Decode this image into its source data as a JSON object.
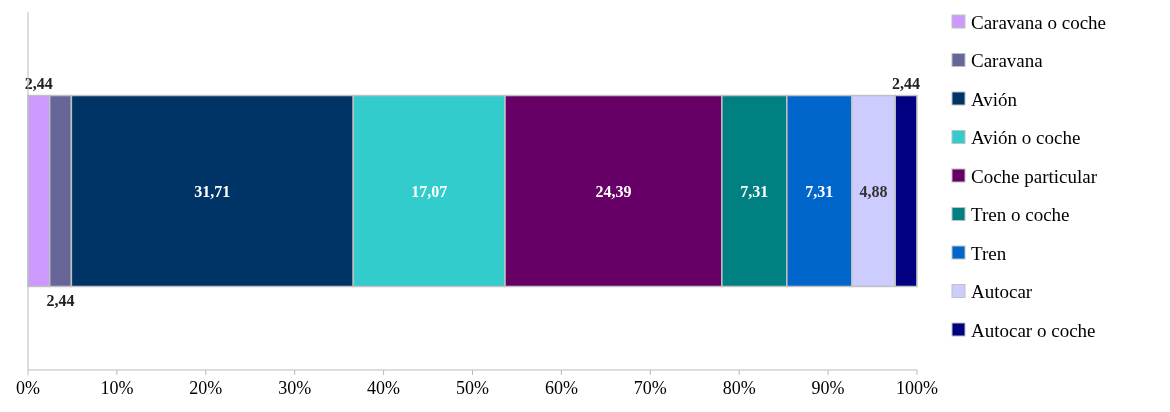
{
  "chart_data": {
    "type": "bar",
    "orientation": "horizontal",
    "stacked": true,
    "categories": [
      null
    ],
    "xlim": [
      0,
      100
    ],
    "xticks": [
      {
        "value": 0,
        "label": "0%"
      },
      {
        "value": 10,
        "label": "10%"
      },
      {
        "value": 20,
        "label": "20%"
      },
      {
        "value": 30,
        "label": "30%"
      },
      {
        "value": 40,
        "label": "40%"
      },
      {
        "value": 50,
        "label": "50%"
      },
      {
        "value": 60,
        "label": "60%"
      },
      {
        "value": 70,
        "label": "70%"
      },
      {
        "value": 80,
        "label": "80%"
      },
      {
        "value": 90,
        "label": "90%"
      },
      {
        "value": 100,
        "label": "100%"
      }
    ],
    "series": [
      {
        "name": "Caravana o coche",
        "color": "#cc99ff",
        "values": [
          2.44
        ],
        "value_labels": [
          "2,44"
        ]
      },
      {
        "name": "Caravana",
        "color": "#666699",
        "values": [
          2.44
        ],
        "value_labels": [
          "2,44"
        ]
      },
      {
        "name": "Avión",
        "color": "#003366",
        "values": [
          31.71
        ],
        "value_labels": [
          "31,71"
        ]
      },
      {
        "name": "Avión o coche",
        "color": "#33cccc",
        "values": [
          17.07
        ],
        "value_labels": [
          "17,07"
        ]
      },
      {
        "name": "Coche particular",
        "color": "#660066",
        "values": [
          24.39
        ],
        "value_labels": [
          "24,39"
        ]
      },
      {
        "name": "Tren o coche",
        "color": "#008080",
        "values": [
          7.31
        ],
        "value_labels": [
          "7,31"
        ]
      },
      {
        "name": "Tren",
        "color": "#0066cc",
        "values": [
          7.31
        ],
        "value_labels": [
          "7,31"
        ]
      },
      {
        "name": "Autocar",
        "color": "#ccccff",
        "values": [
          4.88
        ],
        "value_labels": [
          "4,88"
        ]
      },
      {
        "name": "Autocar o coche",
        "color": "#000080",
        "values": [
          2.44
        ],
        "value_labels": [
          "2,44"
        ]
      }
    ],
    "legend": "right",
    "grid": false
  }
}
